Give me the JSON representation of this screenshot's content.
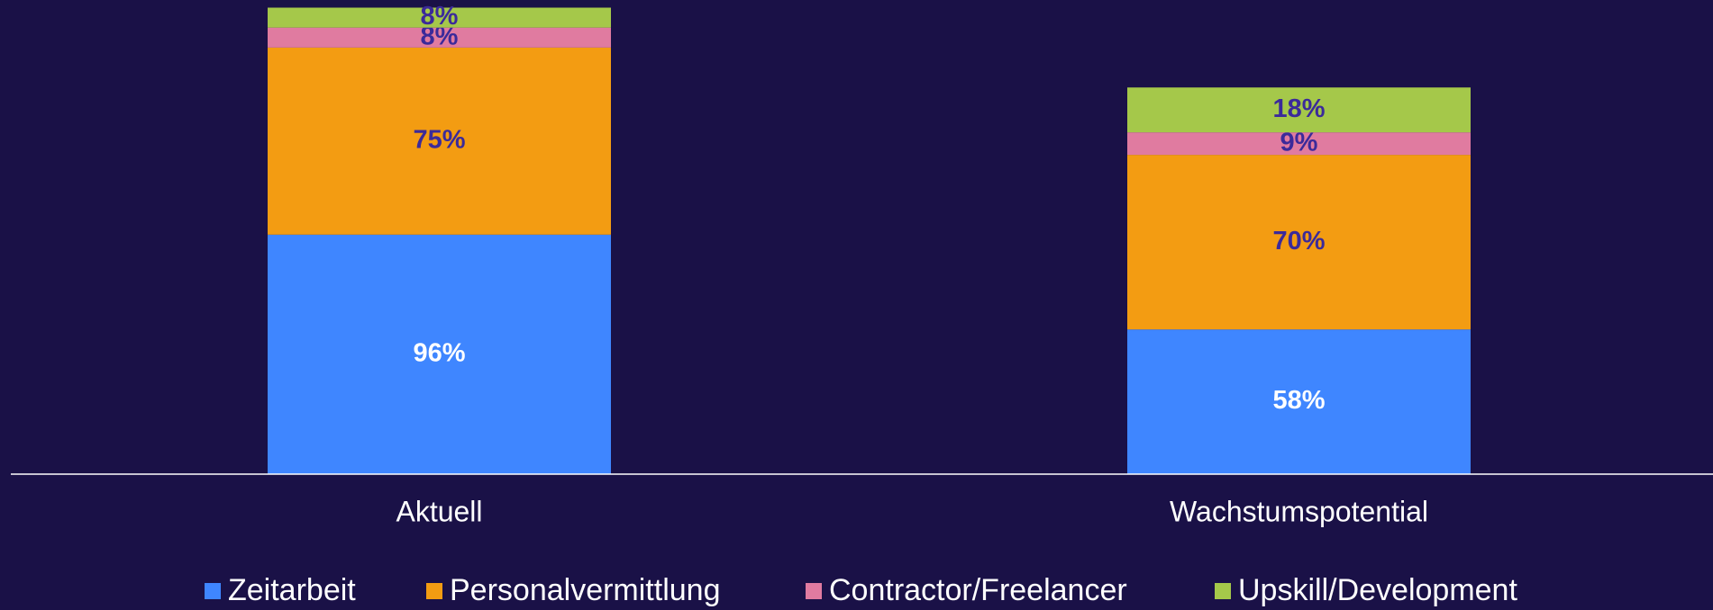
{
  "chart_data": {
    "type": "stacked_bar",
    "categories": [
      "Aktuell",
      "Wachstumspotential"
    ],
    "series": [
      {
        "name": "Zeitarbeit",
        "color": "#3f86ff",
        "label_color": "#ffffff",
        "values": [
          96,
          58
        ],
        "value_labels": [
          "96%",
          "58%"
        ]
      },
      {
        "name": "Personalvermittlung",
        "color": "#f39c12",
        "label_color": "#3b2a9a",
        "values": [
          75,
          70
        ],
        "value_labels": [
          "75%",
          "70%"
        ]
      },
      {
        "name": "Contractor/Freelancer",
        "color": "#e07ba0",
        "label_color": "#3b2a9a",
        "values": [
          8,
          9
        ],
        "value_labels": [
          "8%",
          "9%"
        ]
      },
      {
        "name": "Upskill/Development",
        "color": "#a5c84a",
        "label_color": "#3b2a9a",
        "values": [
          8,
          18
        ],
        "value_labels": [
          "8%",
          "18%"
        ]
      }
    ],
    "legend": "bottom"
  }
}
